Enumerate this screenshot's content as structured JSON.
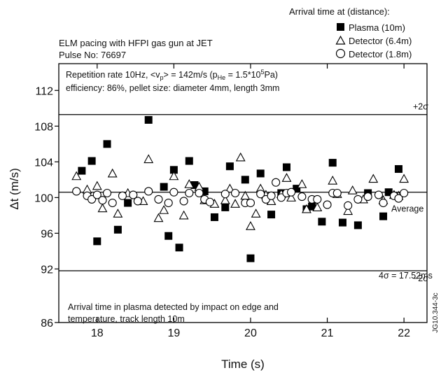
{
  "chart_data": {
    "type": "scatter",
    "header_text": {
      "legend_title": "Arrival time at (distance):",
      "title_line1": "ELM pacing with HFPI gas gun at JET",
      "title_line2": "Pulse No: 76697"
    },
    "info_box": {
      "line1_prefix": "Repetition rate 10Hz, <v",
      "line1_v_sub": "p",
      "line1_mid": "> = 142m/s (p",
      "line1_p_sub": "He",
      "line1_eq": " = 1.5*10",
      "line1_sup": "5",
      "line1_end": "Pa)",
      "line2": "efficiency: 86%, pellet size: diameter 4mm, length 3mm"
    },
    "bottom_note": {
      "line1": "Arrival time in plasma detected by impact on edge and",
      "line2": "temperature, track length 10m"
    },
    "annotations": {
      "plus2sigma": "+2σ",
      "minus2sigma": "−2σ",
      "average": "Average",
      "fourSigma": "4σ = 17.52ms",
      "figure_id": "JG10.344-3c"
    },
    "xlabel": "Time (s)",
    "ylabel": "Δt (m/s)",
    "xlim": [
      17.5,
      22.3
    ],
    "ylim": [
      86,
      115
    ],
    "x_ticks": [
      18,
      19,
      20,
      21,
      22
    ],
    "y_ticks": [
      86,
      92,
      96,
      100,
      104,
      108,
      112
    ],
    "grid": false,
    "legend_position": "top-right",
    "reference_lines": {
      "plus2sigma": 109.3,
      "average": 100.6,
      "minus2sigma": 91.8
    },
    "series": [
      {
        "name": "Plasma (10m)",
        "marker": "filled-square",
        "points": [
          [
            17.8,
            103
          ],
          [
            17.93,
            104.1
          ],
          [
            18.0,
            95.1
          ],
          [
            18.13,
            106
          ],
          [
            18.27,
            96.4
          ],
          [
            18.4,
            99.4
          ],
          [
            18.67,
            108.7
          ],
          [
            18.87,
            101.2
          ],
          [
            18.93,
            95.7
          ],
          [
            19.0,
            103.1
          ],
          [
            19.07,
            94.4
          ],
          [
            19.2,
            104.1
          ],
          [
            19.27,
            101.4
          ],
          [
            19.4,
            100.7
          ],
          [
            19.53,
            97.8
          ],
          [
            19.67,
            98.9
          ],
          [
            19.73,
            103.5
          ],
          [
            19.93,
            102
          ],
          [
            20.0,
            93.2
          ],
          [
            20.13,
            102.7
          ],
          [
            20.27,
            98.1
          ],
          [
            20.4,
            100.5
          ],
          [
            20.47,
            103.4
          ],
          [
            20.6,
            101
          ],
          [
            20.73,
            98.7
          ],
          [
            20.8,
            99.0
          ],
          [
            20.93,
            97.3
          ],
          [
            21.07,
            103.9
          ],
          [
            21.2,
            97.2
          ],
          [
            21.4,
            96.9
          ],
          [
            21.53,
            100.5
          ],
          [
            21.73,
            97.9
          ],
          [
            21.8,
            100.6
          ],
          [
            21.93,
            103.2
          ]
        ]
      },
      {
        "name": "Detector (6.4m)",
        "marker": "open-triangle",
        "points": [
          [
            17.73,
            102.4
          ],
          [
            17.87,
            100.9
          ],
          [
            18.0,
            101.3
          ],
          [
            18.07,
            98.8
          ],
          [
            18.2,
            102.7
          ],
          [
            18.27,
            98.2
          ],
          [
            18.4,
            100.5
          ],
          [
            18.6,
            99.6
          ],
          [
            18.67,
            104.3
          ],
          [
            18.8,
            97.7
          ],
          [
            18.87,
            98.6
          ],
          [
            19.0,
            102.4
          ],
          [
            19.13,
            98.0
          ],
          [
            19.2,
            101.5
          ],
          [
            19.33,
            101.2
          ],
          [
            19.4,
            99.7
          ],
          [
            19.53,
            99.3
          ],
          [
            19.67,
            99.7
          ],
          [
            19.73,
            101.0
          ],
          [
            19.8,
            99.3
          ],
          [
            19.87,
            104.5
          ],
          [
            19.93,
            100.2
          ],
          [
            20.0,
            96.8
          ],
          [
            20.07,
            98.2
          ],
          [
            20.13,
            101.0
          ],
          [
            20.2,
            100.3
          ],
          [
            20.27,
            99.6
          ],
          [
            20.4,
            100.4
          ],
          [
            20.47,
            102.2
          ],
          [
            20.53,
            100.0
          ],
          [
            20.67,
            101.5
          ],
          [
            20.73,
            98.7
          ],
          [
            20.87,
            98.9
          ],
          [
            21.07,
            101.9
          ],
          [
            21.13,
            100.4
          ],
          [
            21.27,
            98.5
          ],
          [
            21.33,
            100.8
          ],
          [
            21.47,
            99.8
          ],
          [
            21.6,
            102.1
          ],
          [
            21.73,
            99.7
          ],
          [
            21.87,
            100.3
          ],
          [
            21.93,
            100.2
          ],
          [
            22.0,
            102.1
          ]
        ]
      },
      {
        "name": "Detector (1.8m)",
        "marker": "open-circle",
        "points": [
          [
            17.73,
            100.7
          ],
          [
            17.87,
            100.2
          ],
          [
            17.93,
            99.8
          ],
          [
            18.0,
            100.3
          ],
          [
            18.07,
            99.7
          ],
          [
            18.13,
            100.5
          ],
          [
            18.2,
            99.4
          ],
          [
            18.33,
            100.2
          ],
          [
            18.47,
            100.3
          ],
          [
            18.53,
            99.6
          ],
          [
            18.67,
            100.7
          ],
          [
            18.8,
            99.8
          ],
          [
            18.93,
            99.4
          ],
          [
            19.0,
            100.6
          ],
          [
            19.13,
            99.6
          ],
          [
            19.2,
            100.5
          ],
          [
            19.33,
            100.5
          ],
          [
            19.4,
            99.8
          ],
          [
            19.47,
            99.5
          ],
          [
            19.67,
            100.4
          ],
          [
            19.8,
            100.5
          ],
          [
            19.93,
            99.4
          ],
          [
            20.0,
            99.4
          ],
          [
            20.13,
            100.4
          ],
          [
            20.2,
            99.8
          ],
          [
            20.27,
            100.2
          ],
          [
            20.33,
            101.7
          ],
          [
            20.4,
            100.0
          ],
          [
            20.47,
            100.5
          ],
          [
            20.53,
            100.6
          ],
          [
            20.67,
            100.1
          ],
          [
            20.8,
            99.8
          ],
          [
            20.87,
            99.8
          ],
          [
            21.0,
            99.2
          ],
          [
            21.07,
            100.5
          ],
          [
            21.13,
            100.5
          ],
          [
            21.27,
            99.1
          ],
          [
            21.4,
            99.8
          ],
          [
            21.53,
            100.1
          ],
          [
            21.67,
            100.3
          ],
          [
            21.73,
            99.4
          ],
          [
            21.87,
            100.2
          ],
          [
            21.93,
            99.9
          ],
          [
            22.0,
            100.5
          ]
        ]
      }
    ],
    "colors": {
      "plasma": "#000000",
      "detectors": "#000000",
      "background": "#ffffff"
    }
  }
}
